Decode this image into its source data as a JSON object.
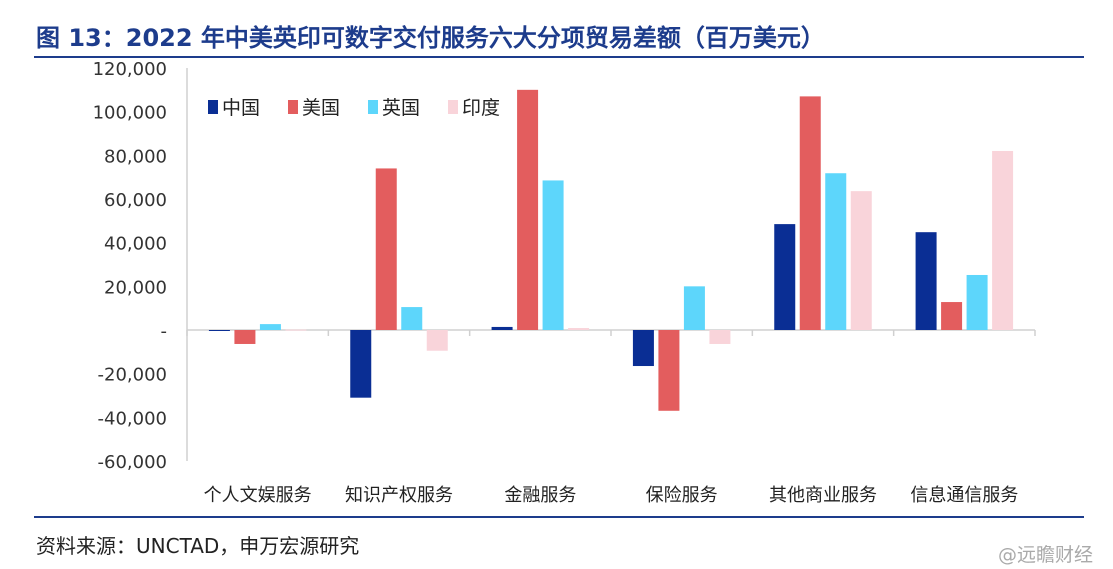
{
  "title": "图 13：2022 年中美英印可数字交付服务六大分项贸易差额（百万美元）",
  "source": "资料来源：UNCTAD，申万宏源研究",
  "watermark": "@远瞻财经",
  "chart_data": {
    "type": "bar",
    "title": "",
    "xlabel": "",
    "ylabel": "",
    "ylim": [
      -60000,
      120000
    ],
    "yticks": [
      -60000,
      -40000,
      -20000,
      0,
      20000,
      40000,
      60000,
      80000,
      100000,
      120000
    ],
    "ytick_labels": [
      "-60,000",
      "-40,000",
      "-20,000",
      "-",
      "20,000",
      "40,000",
      "60,000",
      "80,000",
      "100,000",
      "120,000"
    ],
    "grid": false,
    "legend_position": "top-left",
    "categories": [
      "个人文娱服务",
      "知识产权服务",
      "金融服务",
      "保险服务",
      "其他商业服务",
      "信息通信服务"
    ],
    "series": [
      {
        "name": "中国",
        "color": "#0a2e94",
        "values": [
          -300,
          -31000,
          1400,
          -16500,
          48500,
          44800
        ]
      },
      {
        "name": "美国",
        "color": "#e35d5e",
        "values": [
          -6400,
          74000,
          110000,
          -37000,
          107000,
          12800
        ]
      },
      {
        "name": "英国",
        "color": "#5dd6fb",
        "values": [
          2700,
          10500,
          68500,
          20000,
          71800,
          25200
        ]
      },
      {
        "name": "印度",
        "color": "#f9d4da",
        "values": [
          200,
          -9500,
          900,
          -6400,
          63600,
          82000
        ]
      }
    ]
  }
}
